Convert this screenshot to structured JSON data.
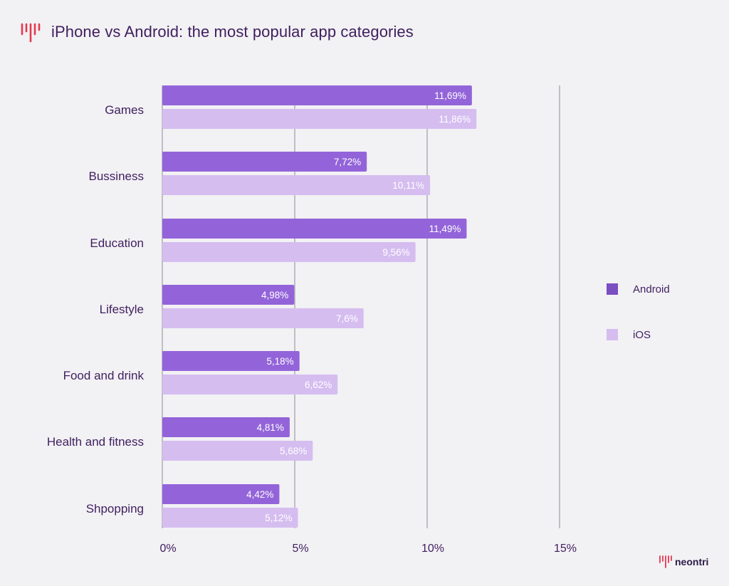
{
  "header": {
    "title": "iPhone vs Android: the most popular app categories",
    "logo_icon": "neontri-waveform-icon"
  },
  "footer": {
    "brand": "neontri"
  },
  "colors": {
    "android": "#9364d9",
    "ios": "#d5bdf0",
    "text": "#3f1f5e",
    "grid": "#8f8a96",
    "logo": "#e33a4f",
    "background": "#f2f1f4"
  },
  "chart_data": {
    "type": "bar",
    "orientation": "horizontal",
    "title": "iPhone vs Android: the most popular app categories",
    "categories": [
      "Games",
      "Bussiness",
      "Education",
      "Lifestyle",
      "Food and drink",
      "Health and fitness",
      "Shpopping"
    ],
    "series": [
      {
        "name": "Android",
        "values": [
          11.69,
          7.72,
          11.49,
          4.98,
          5.18,
          4.81,
          4.42
        ],
        "labels": [
          "11,69%",
          "7,72%",
          "11,49%",
          "4,98%",
          "5,18%",
          "4,81%",
          "4,42%"
        ]
      },
      {
        "name": "iOS",
        "values": [
          11.86,
          10.11,
          9.56,
          7.6,
          6.62,
          5.68,
          5.12
        ],
        "labels": [
          "11,86%",
          "10,11%",
          "9,56%",
          "7,6%",
          "6,62%",
          "5,68%",
          "5,12%"
        ]
      }
    ],
    "x_ticks": [
      0,
      5,
      10,
      15
    ],
    "x_tick_labels": [
      "0%",
      "5%",
      "10%",
      "15%"
    ],
    "xlim": [
      0,
      15
    ],
    "legend": [
      "Android",
      "iOS"
    ],
    "legend_position": "right",
    "grid": true
  }
}
